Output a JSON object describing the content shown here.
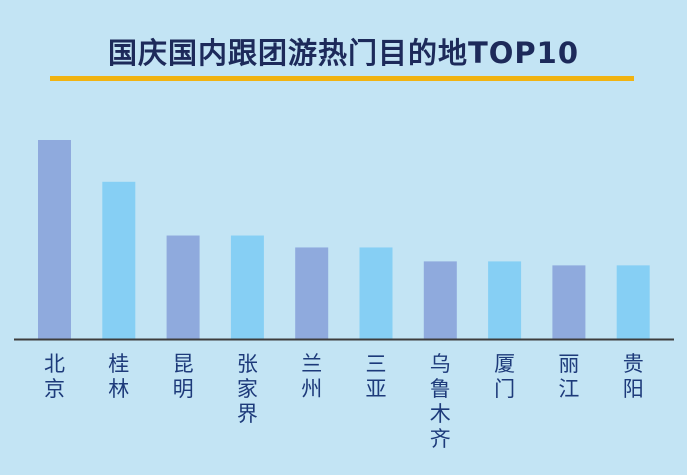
{
  "title": "国庆国内跟团游热门目的地TOP10",
  "colors": {
    "background": "#c3e4f4",
    "bar_a": "#8faadd",
    "bar_b": "#86cff4",
    "title": "#1d2a5a",
    "accent": "#f1b311",
    "axis": "#3d3d3d",
    "labels": "#1d3a7a"
  },
  "chart_data": {
    "type": "bar",
    "title": "国庆国内跟团游热门目的地TOP10",
    "xlabel": "",
    "ylabel": "",
    "categories": [
      "北京",
      "桂林",
      "昆明",
      "张家界",
      "兰州",
      "三亚",
      "乌鲁木齐",
      "厦门",
      "丽江",
      "贵阳"
    ],
    "values": [
      100,
      79,
      52,
      52,
      46,
      46,
      39,
      39,
      37,
      37
    ],
    "ylim": [
      0,
      100
    ],
    "grid": false,
    "legend": "none"
  }
}
